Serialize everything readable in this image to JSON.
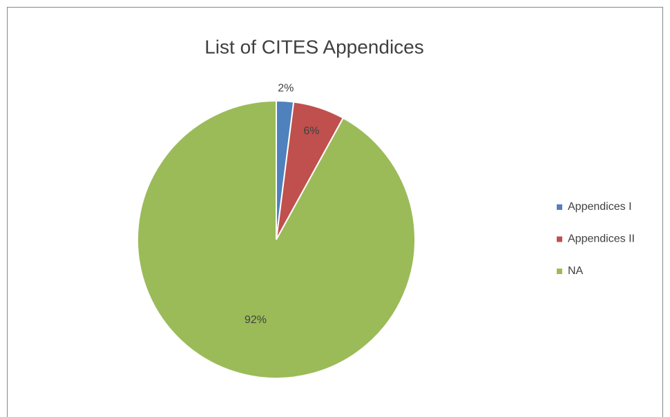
{
  "chart_data": {
    "type": "pie",
    "title": "List of CITES Appendices",
    "categories": [
      "Appendices I",
      "Appendices II",
      "NA"
    ],
    "values": [
      2,
      6,
      92
    ],
    "value_labels": [
      "2%",
      "6%",
      "92%"
    ],
    "colors": [
      "#4f81bd",
      "#c0504d",
      "#9bbb59"
    ],
    "legend": "right"
  }
}
